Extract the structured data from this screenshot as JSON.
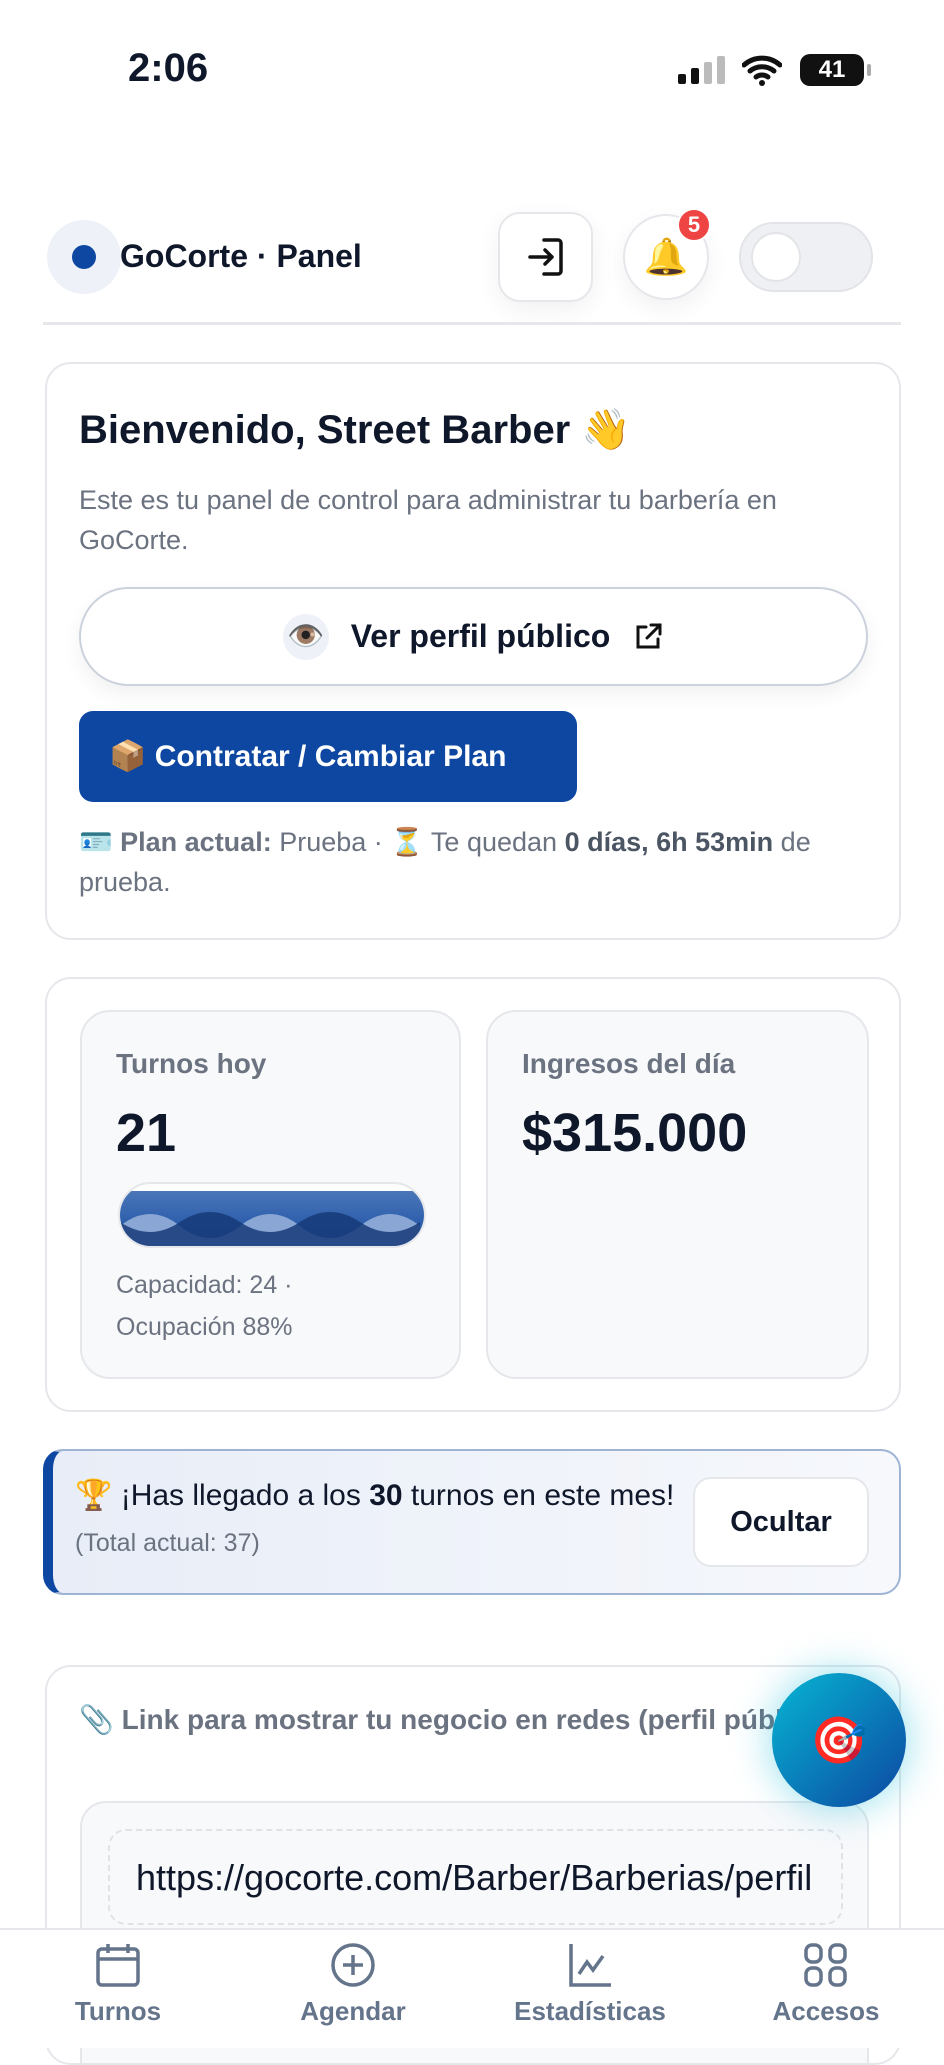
{
  "status_bar": {
    "time": "2:06",
    "battery": "41"
  },
  "header": {
    "brand": "GoCorte · Panel",
    "notifications_count": "5",
    "login_icon": "login-icon",
    "bell_icon": "bell-icon",
    "theme_toggle_on": false
  },
  "welcome": {
    "title": "Bienvenido, Street Barber 👋",
    "description": "Este es tu panel de control para administrar tu barbería en GoCorte.",
    "public_profile_button": "Ver perfil público",
    "plan_button": "📦 Contratar / Cambiar Plan",
    "plan_label": "Plan actual:",
    "plan_value": "Prueba ·",
    "remaining_prefix": "Te quedan",
    "remaining_value": "0 días, 6h 53min",
    "remaining_suffix": "de prueba."
  },
  "stats": {
    "appointments_label": "Turnos hoy",
    "appointments_value": "21",
    "capacity_text": "Capacidad: 24 ·",
    "occupancy_text": "Ocupación 88%",
    "occupancy_percent": 88,
    "income_label": "Ingresos del día",
    "income_value": "$315.000"
  },
  "milestone": {
    "prefix": "¡Has llegado a los",
    "count": "30",
    "suffix": "turnos en este mes!",
    "total": "(Total actual: 37)",
    "hide_button": "Ocultar"
  },
  "share_link": {
    "title": "Link para mostrar tu negocio en redes (perfil público)",
    "url": "https://gocorte.com/Barber/Barberias/perfil"
  },
  "bottom_nav": [
    {
      "label": "Turnos",
      "icon": "calendar-icon"
    },
    {
      "label": "Agendar",
      "icon": "plus-circle-icon"
    },
    {
      "label": "Estadísticas",
      "icon": "chart-icon"
    },
    {
      "label": "Accesos",
      "icon": "grid-icon"
    }
  ],
  "colors": {
    "primary": "#0d47a1",
    "badge": "#ef4444"
  }
}
